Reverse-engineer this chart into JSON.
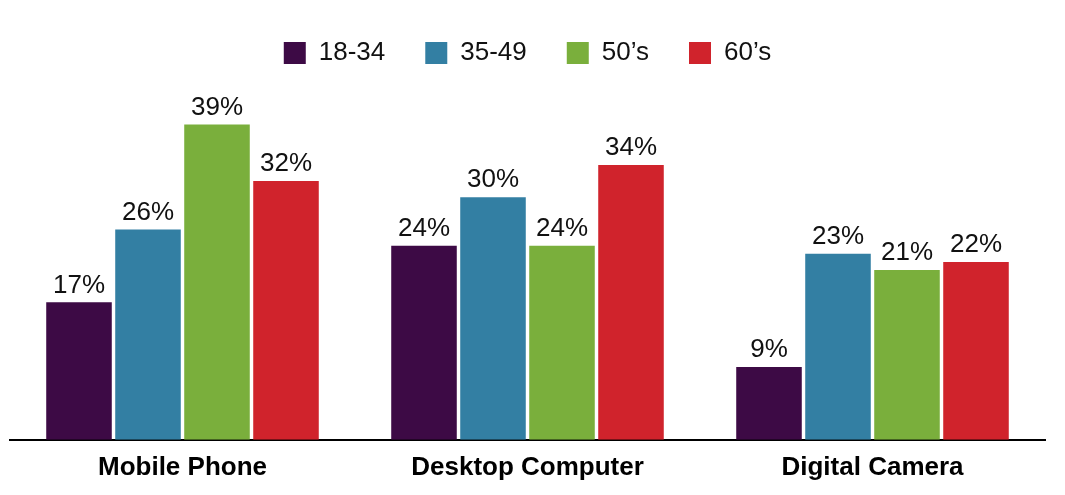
{
  "chart_data": {
    "type": "bar",
    "categories": [
      "Mobile Phone",
      "Desktop Computer",
      "Digital Camera"
    ],
    "series": [
      {
        "name": "18-34",
        "color": "#3d0a45",
        "values": [
          17,
          24,
          9
        ],
        "value_labels": [
          "17%",
          "24%",
          "9%"
        ]
      },
      {
        "name": "35-49",
        "color": "#337fa3",
        "values": [
          26,
          30,
          23
        ],
        "value_labels": [
          "26%",
          "30%",
          "23%"
        ]
      },
      {
        "name": "50’s",
        "color": "#7aaf3c",
        "values": [
          39,
          24,
          21
        ],
        "value_labels": [
          "39%",
          "24%",
          "21%"
        ]
      },
      {
        "name": "60’s",
        "color": "#d0232c",
        "values": [
          32,
          34,
          22
        ],
        "value_labels": [
          "32%",
          "34%",
          "22%"
        ]
      }
    ],
    "legend": "top",
    "grid": false
  }
}
